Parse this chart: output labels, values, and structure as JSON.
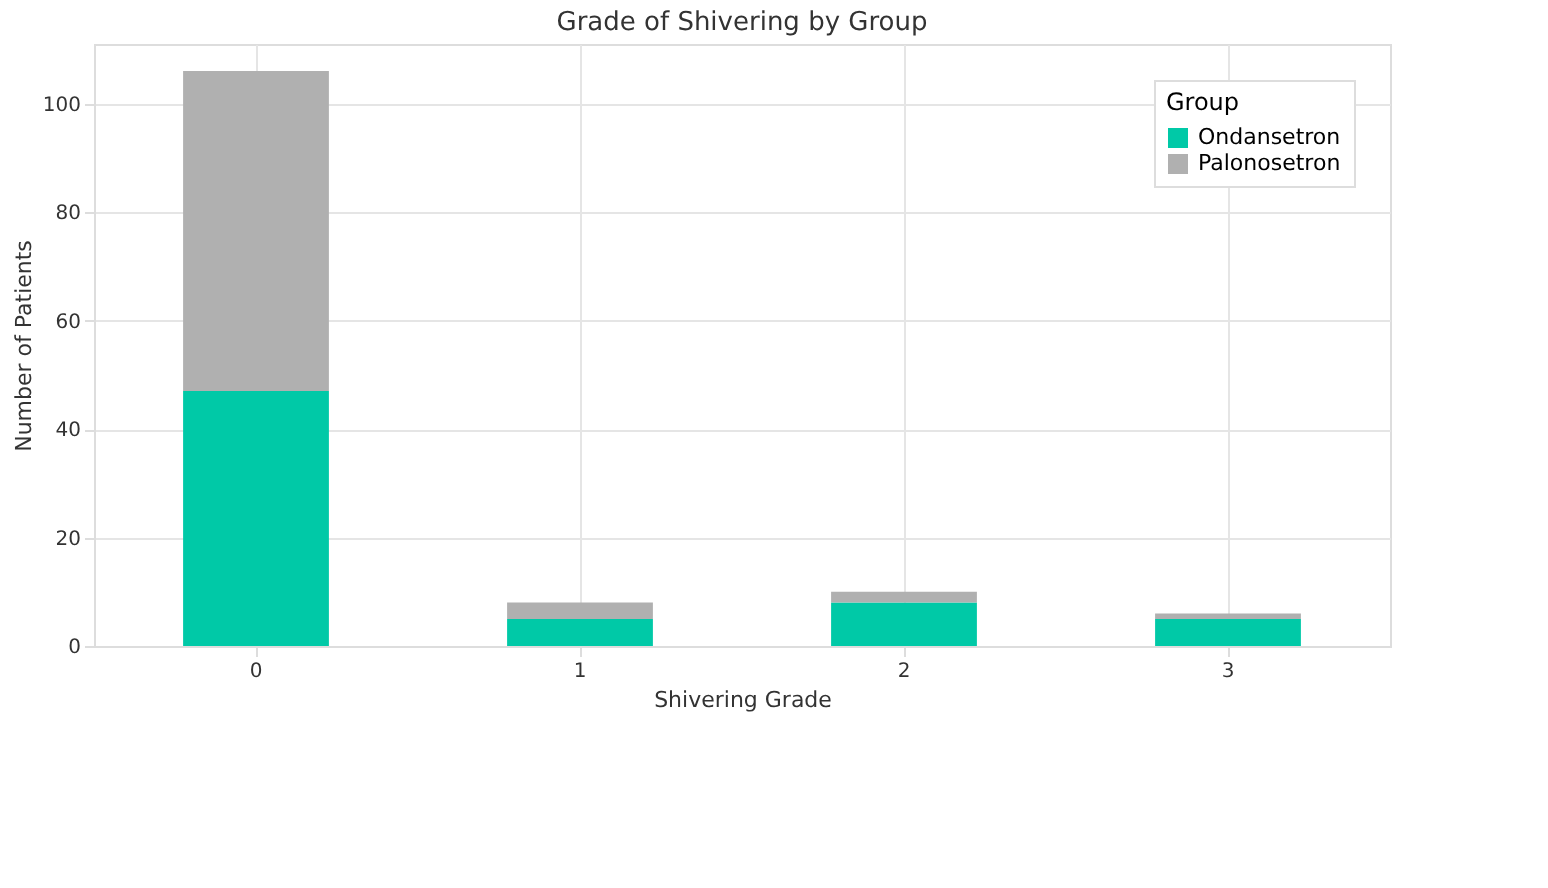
{
  "chart_data": {
    "type": "bar",
    "title": "Grade of Shivering by Group",
    "xlabel": "Shivering Grade",
    "ylabel": "Number of Patients",
    "legend_title": "Group",
    "categories": [
      "0",
      "1",
      "2",
      "3"
    ],
    "series": [
      {
        "name": "Ondansetron",
        "color": "#00c9a7",
        "values": [
          47,
          5,
          8,
          5
        ]
      },
      {
        "name": "Palonosetron",
        "color": "#b0b0b0",
        "values": [
          59,
          3,
          2,
          1
        ]
      }
    ],
    "stacked": true,
    "ylim": [
      0,
      111
    ],
    "yticks": [
      0,
      20,
      40,
      60,
      80,
      100
    ],
    "grid": true,
    "legend": "top right"
  }
}
